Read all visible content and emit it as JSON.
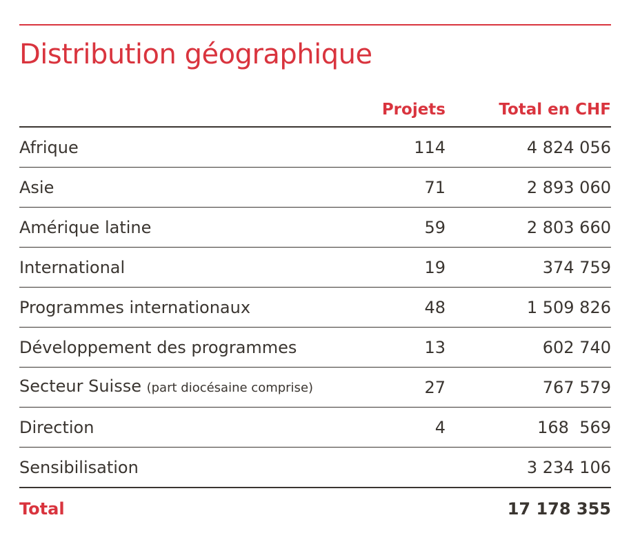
{
  "title": "Distribution géographique",
  "table": {
    "headers": {
      "region": "",
      "projets": "Projets",
      "total": "Total en CHF"
    },
    "rows": [
      {
        "region": "Afrique",
        "note": "",
        "projets": "114",
        "total": "4 824 056"
      },
      {
        "region": "Asie",
        "note": "",
        "projets": "71",
        "total": "2 893 060"
      },
      {
        "region": "Amérique latine",
        "note": "",
        "projets": "59",
        "total": "2 803 660"
      },
      {
        "region": "International",
        "note": "",
        "projets": "19",
        "total": "374 759"
      },
      {
        "region": "Programmes internationaux",
        "note": "",
        "projets": "48",
        "total": "1 509 826"
      },
      {
        "region": "Développement des programmes",
        "note": "",
        "projets": "13",
        "total": "602 740"
      },
      {
        "region": "Secteur Suisse",
        "note": "(part diocésaine comprise)",
        "projets": "27",
        "total": "767 579"
      },
      {
        "region": "Direction",
        "note": "",
        "projets": "4",
        "total": "168  569"
      },
      {
        "region": "Sensibilisation",
        "note": "",
        "projets": "",
        "total": "3 234 106"
      }
    ],
    "total_row": {
      "label": "Total",
      "projets": "",
      "total": "17 178 355"
    }
  },
  "colors": {
    "accent": "#d9343e",
    "text": "#3a3530"
  }
}
